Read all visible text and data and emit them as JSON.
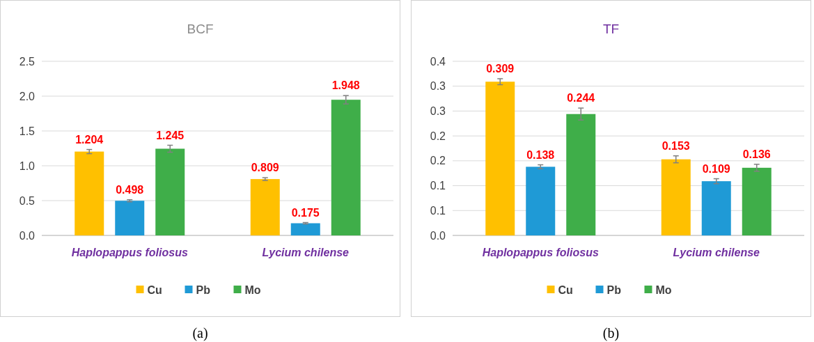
{
  "chart_data": [
    {
      "type": "bar",
      "title": "BCF",
      "categories": [
        "Haplopappus foliosus",
        "Lycium chilense"
      ],
      "series": [
        {
          "name": "Cu",
          "color": "#ffc000",
          "values": [
            1.204,
            0.809
          ],
          "errors": [
            0.03,
            0.02
          ]
        },
        {
          "name": "Pb",
          "color": "#1f9ad6",
          "values": [
            0.498,
            0.175
          ],
          "errors": [
            0.015,
            0.01
          ]
        },
        {
          "name": "Mo",
          "color": "#3fae49",
          "values": [
            1.245,
            1.948
          ],
          "errors": [
            0.05,
            0.06
          ]
        }
      ],
      "ylim": [
        0,
        2.5
      ],
      "yticks": [
        "0.0",
        0.5,
        "1.0",
        1.5,
        "2.0",
        2.5
      ],
      "grid": "y",
      "legend": "bottom",
      "data_labels": true,
      "annotations": [
        "(a)"
      ]
    },
    {
      "type": "bar",
      "title": "TF",
      "categories": [
        "Haplopappus foliosus",
        "Lycium chilense"
      ],
      "series": [
        {
          "name": "Cu",
          "color": "#ffc000",
          "values": [
            0.309,
            0.153
          ],
          "errors": [
            0.006,
            0.007
          ]
        },
        {
          "name": "Pb",
          "color": "#1f9ad6",
          "values": [
            0.138,
            0.109
          ],
          "errors": [
            0.004,
            0.005
          ]
        },
        {
          "name": "Mo",
          "color": "#3fae49",
          "values": [
            0.244,
            0.136
          ],
          "errors": [
            0.012,
            0.007
          ]
        }
      ],
      "ylim": [
        0,
        0.35
      ],
      "yticks": [
        {
          "value": 0,
          "label": "0.0"
        },
        {
          "value": 0.05,
          "label": "0.1"
        },
        {
          "value": 0.1,
          "label": "0.1"
        },
        {
          "value": 0.15,
          "label": "0.2"
        },
        {
          "value": 0.2,
          "label": "0.2"
        },
        {
          "value": 0.25,
          "label": "0.3"
        },
        {
          "value": 0.3,
          "label": "0.3"
        },
        {
          "value": 0.35,
          "label": "0.4"
        }
      ],
      "grid": "y",
      "legend": "bottom",
      "data_labels": true,
      "annotations": [
        "(b)"
      ]
    }
  ]
}
